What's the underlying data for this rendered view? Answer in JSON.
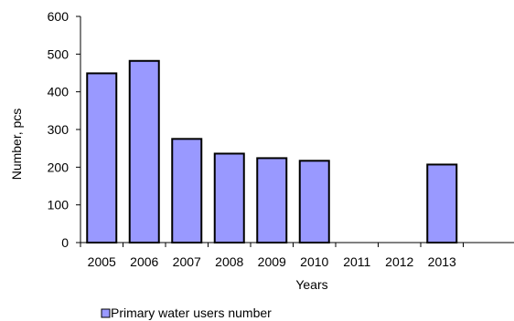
{
  "chart_data": {
    "type": "bar",
    "title": "",
    "xlabel": "Years",
    "ylabel": "Number, pcs",
    "categories": [
      "2005",
      "2006",
      "2007",
      "2008",
      "2009",
      "2010",
      "2011",
      "2012",
      "2013"
    ],
    "series": [
      {
        "name": "Primary water users number",
        "values": [
          449,
          482,
          275,
          236,
          224,
          217,
          null,
          null,
          207
        ],
        "color": "#9999ff"
      }
    ],
    "ylim": [
      0,
      600
    ],
    "yticks": [
      0,
      100,
      200,
      300,
      400,
      500,
      600
    ],
    "grid": false,
    "legend": {
      "position": "bottom-left"
    }
  }
}
